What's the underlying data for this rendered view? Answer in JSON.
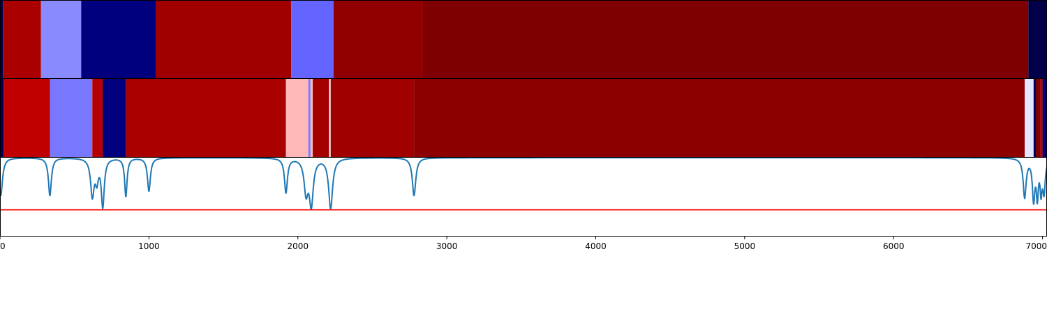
{
  "chart_data": [
    {
      "type": "heatmap",
      "panel": "top-strip",
      "xlim": [
        0,
        7030
      ],
      "segments": [
        {
          "start": 0,
          "end": 20,
          "color": "#00005a"
        },
        {
          "start": 20,
          "end": 275,
          "color": "#aa0000"
        },
        {
          "start": 275,
          "end": 545,
          "color": "#8a8aff"
        },
        {
          "start": 545,
          "end": 1045,
          "color": "#00007f"
        },
        {
          "start": 1045,
          "end": 1955,
          "color": "#a00000"
        },
        {
          "start": 1955,
          "end": 2240,
          "color": "#6464ff"
        },
        {
          "start": 2240,
          "end": 2840,
          "color": "#900000"
        },
        {
          "start": 2840,
          "end": 6905,
          "color": "#7f0000"
        },
        {
          "start": 6905,
          "end": 7030,
          "color": "#00004a"
        }
      ]
    },
    {
      "type": "heatmap",
      "panel": "middle-strip",
      "xlim": [
        0,
        7030
      ],
      "segments": [
        {
          "start": 0,
          "end": 25,
          "color": "#00005a"
        },
        {
          "start": 25,
          "end": 335,
          "color": "#c00000"
        },
        {
          "start": 335,
          "end": 620,
          "color": "#7878ff"
        },
        {
          "start": 620,
          "end": 690,
          "color": "#b40000"
        },
        {
          "start": 690,
          "end": 845,
          "color": "#00007f"
        },
        {
          "start": 845,
          "end": 1920,
          "color": "#aa0000"
        },
        {
          "start": 1920,
          "end": 2070,
          "color": "#ffb9b9"
        },
        {
          "start": 2070,
          "end": 2085,
          "color": "#7c7cff"
        },
        {
          "start": 2085,
          "end": 2100,
          "color": "#ffb9b9"
        },
        {
          "start": 2100,
          "end": 2210,
          "color": "#a50000"
        },
        {
          "start": 2210,
          "end": 2220,
          "color": "#ffffff"
        },
        {
          "start": 2220,
          "end": 2780,
          "color": "#a00000"
        },
        {
          "start": 2780,
          "end": 6880,
          "color": "#8c0000"
        },
        {
          "start": 6880,
          "end": 6940,
          "color": "#e6e6ff"
        },
        {
          "start": 6940,
          "end": 6955,
          "color": "#00005a"
        },
        {
          "start": 6955,
          "end": 6985,
          "color": "#7f0000"
        },
        {
          "start": 6985,
          "end": 7000,
          "color": "#b40000"
        },
        {
          "start": 7000,
          "end": 7030,
          "color": "#00007f"
        }
      ]
    },
    {
      "type": "line",
      "panel": "bottom-plot",
      "xlim": [
        0,
        7030
      ],
      "ylim": [
        -0.2,
        1.0
      ],
      "x_ticks": [
        0,
        1000,
        2000,
        3000,
        4000,
        5000,
        6000,
        7000
      ],
      "x_tick_labels": [
        "0",
        "1000",
        "2000",
        "3000",
        "4000",
        "5000",
        "6000",
        "7000"
      ],
      "grid": false,
      "series": [
        {
          "color": "#1f77b4",
          "baseline": 1.0,
          "dips": [
            {
              "x": 5,
              "depth": 0.58,
              "width": 14
            },
            {
              "x": 335,
              "depth": 0.58,
              "width": 12
            },
            {
              "x": 620,
              "depth": 0.57,
              "width": 14
            },
            {
              "x": 650,
              "depth": 0.3,
              "width": 12
            },
            {
              "x": 690,
              "depth": 0.73,
              "width": 12
            },
            {
              "x": 845,
              "depth": 0.59,
              "width": 10
            },
            {
              "x": 1000,
              "depth": 0.51,
              "width": 12
            },
            {
              "x": 1920,
              "depth": 0.53,
              "width": 12
            },
            {
              "x": 2055,
              "depth": 0.5,
              "width": 16
            },
            {
              "x": 2090,
              "depth": 0.69,
              "width": 16
            },
            {
              "x": 2220,
              "depth": 0.77,
              "width": 16
            },
            {
              "x": 2780,
              "depth": 0.58,
              "width": 14
            },
            {
              "x": 6880,
              "depth": 0.6,
              "width": 12
            },
            {
              "x": 6940,
              "depth": 0.62,
              "width": 10
            },
            {
              "x": 6965,
              "depth": 0.55,
              "width": 8
            },
            {
              "x": 6990,
              "depth": 0.46,
              "width": 8
            },
            {
              "x": 7010,
              "depth": 0.5,
              "width": 10
            }
          ]
        }
      ],
      "threshold": {
        "y": 0.2,
        "color": "#ff0000"
      }
    }
  ]
}
